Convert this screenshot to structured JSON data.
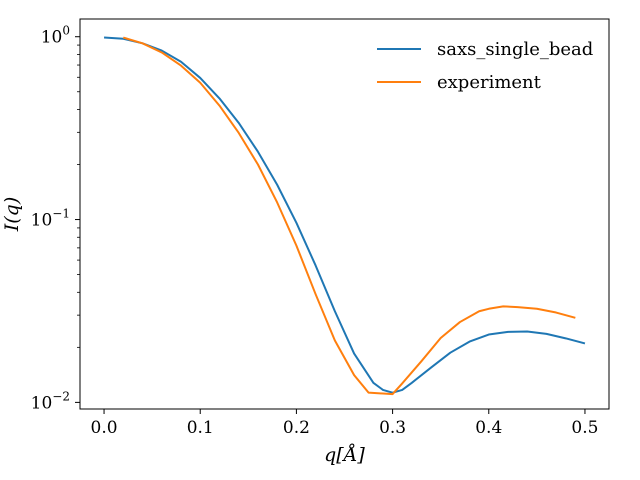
{
  "chart_data": {
    "type": "line",
    "title": "",
    "xlabel": "q[Å]",
    "ylabel": "I(q)",
    "xlim": [
      -0.025,
      0.525
    ],
    "ylim": [
      0.0092,
      1.25
    ],
    "yscale": "log",
    "grid": false,
    "legend_position": "top-right",
    "x_ticks": [
      0.0,
      0.1,
      0.2,
      0.3,
      0.4,
      0.5
    ],
    "x_tick_labels": [
      "0.0",
      "0.1",
      "0.2",
      "0.3",
      "0.4",
      "0.5"
    ],
    "y_ticks": [
      1,
      0.1,
      0.01
    ],
    "y_tick_labels": [
      {
        "base": "10",
        "exp": "0"
      },
      {
        "base": "10",
        "exp": "−1"
      },
      {
        "base": "10",
        "exp": "−2"
      }
    ],
    "series": [
      {
        "name": "saxs_single_bead",
        "color": "#1f77b4",
        "points": [
          [
            0.0,
            0.99
          ],
          [
            0.02,
            0.975
          ],
          [
            0.04,
            0.92
          ],
          [
            0.06,
            0.84
          ],
          [
            0.08,
            0.73
          ],
          [
            0.1,
            0.595
          ],
          [
            0.12,
            0.46
          ],
          [
            0.14,
            0.338
          ],
          [
            0.16,
            0.235
          ],
          [
            0.18,
            0.155
          ],
          [
            0.2,
            0.096
          ],
          [
            0.22,
            0.056
          ],
          [
            0.24,
            0.0315
          ],
          [
            0.26,
            0.0185
          ],
          [
            0.28,
            0.0128
          ],
          [
            0.29,
            0.0117
          ],
          [
            0.3,
            0.0113
          ],
          [
            0.31,
            0.0117
          ],
          [
            0.32,
            0.0128
          ],
          [
            0.34,
            0.0155
          ],
          [
            0.36,
            0.0187
          ],
          [
            0.38,
            0.0215
          ],
          [
            0.4,
            0.0235
          ],
          [
            0.42,
            0.0243
          ],
          [
            0.44,
            0.0244
          ],
          [
            0.46,
            0.0237
          ],
          [
            0.48,
            0.0224
          ],
          [
            0.5,
            0.021
          ]
        ]
      },
      {
        "name": "experiment",
        "color": "#ff7f0e",
        "points": [
          [
            0.02,
            0.99
          ],
          [
            0.04,
            0.92
          ],
          [
            0.06,
            0.82
          ],
          [
            0.08,
            0.695
          ],
          [
            0.1,
            0.56
          ],
          [
            0.12,
            0.42
          ],
          [
            0.14,
            0.298
          ],
          [
            0.16,
            0.2
          ],
          [
            0.18,
            0.124
          ],
          [
            0.2,
            0.072
          ],
          [
            0.22,
            0.039
          ],
          [
            0.24,
            0.0218
          ],
          [
            0.26,
            0.0141
          ],
          [
            0.275,
            0.0113
          ],
          [
            0.3,
            0.0111
          ],
          [
            0.31,
            0.0127
          ],
          [
            0.33,
            0.0168
          ],
          [
            0.35,
            0.0225
          ],
          [
            0.37,
            0.0275
          ],
          [
            0.39,
            0.0315
          ],
          [
            0.4,
            0.0325
          ],
          [
            0.415,
            0.0335
          ],
          [
            0.43,
            0.0332
          ],
          [
            0.45,
            0.0325
          ],
          [
            0.47,
            0.031
          ],
          [
            0.49,
            0.029
          ]
        ]
      }
    ]
  }
}
